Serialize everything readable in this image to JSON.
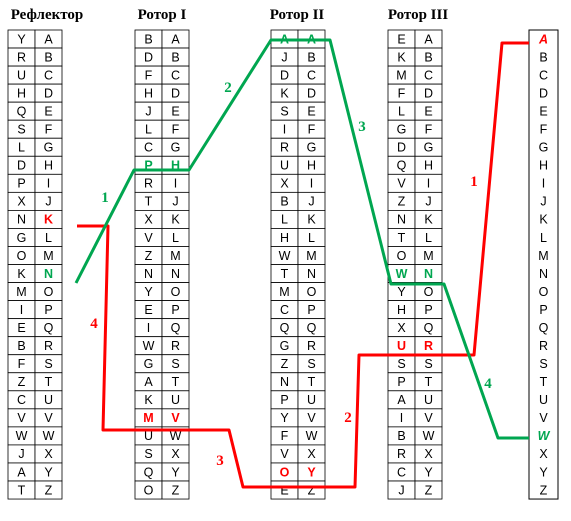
{
  "colors": {
    "red": "#ff0000",
    "green": "#00a650",
    "ink": "#000000",
    "paper": "#ffffff"
  },
  "titles": {
    "reflector": "Рефлектор",
    "rotor1": "Ротор I",
    "rotor2": "Ротор II",
    "rotor3": "Ротор III"
  },
  "reflector": {
    "left": [
      "Y",
      "R",
      "U",
      "H",
      "Q",
      "S",
      "L",
      "D",
      "P",
      "X",
      "N",
      "G",
      "O",
      "K",
      "M",
      "I",
      "E",
      "B",
      "F",
      "Z",
      "C",
      "V",
      "W",
      "J",
      "A",
      "T"
    ],
    "right": [
      "A",
      "B",
      "C",
      "D",
      "E",
      "F",
      "G",
      "H",
      "I",
      "J",
      "K",
      "L",
      "M",
      "N",
      "O",
      "P",
      "Q",
      "R",
      "S",
      "T",
      "U",
      "V",
      "W",
      "X",
      "Y",
      "Z"
    ]
  },
  "rotor1": {
    "left": [
      "B",
      "D",
      "F",
      "H",
      "J",
      "L",
      "C",
      "P",
      "R",
      "T",
      "X",
      "V",
      "Z",
      "N",
      "Y",
      "E",
      "I",
      "W",
      "G",
      "A",
      "K",
      "M",
      "U",
      "S",
      "Q",
      "O"
    ],
    "right": [
      "A",
      "B",
      "C",
      "D",
      "E",
      "F",
      "G",
      "H",
      "I",
      "J",
      "K",
      "L",
      "M",
      "N",
      "O",
      "P",
      "Q",
      "R",
      "S",
      "T",
      "U",
      "V",
      "W",
      "X",
      "Y",
      "Z"
    ]
  },
  "rotor2": {
    "left": [
      "A",
      "J",
      "D",
      "K",
      "S",
      "I",
      "R",
      "U",
      "X",
      "B",
      "L",
      "H",
      "W",
      "T",
      "M",
      "C",
      "Q",
      "G",
      "Z",
      "N",
      "P",
      "Y",
      "F",
      "V",
      "O",
      "E"
    ],
    "right": [
      "A",
      "B",
      "C",
      "D",
      "E",
      "F",
      "G",
      "H",
      "I",
      "J",
      "K",
      "L",
      "M",
      "N",
      "O",
      "P",
      "Q",
      "R",
      "S",
      "T",
      "U",
      "V",
      "W",
      "X",
      "Y",
      "Z"
    ]
  },
  "rotor3": {
    "left": [
      "E",
      "K",
      "M",
      "F",
      "L",
      "G",
      "D",
      "Q",
      "V",
      "Z",
      "N",
      "T",
      "O",
      "W",
      "Y",
      "H",
      "X",
      "U",
      "S",
      "P",
      "A",
      "I",
      "B",
      "R",
      "C",
      "J"
    ],
    "right": [
      "A",
      "B",
      "C",
      "D",
      "E",
      "F",
      "G",
      "H",
      "I",
      "J",
      "K",
      "L",
      "M",
      "N",
      "O",
      "P",
      "Q",
      "R",
      "S",
      "T",
      "U",
      "V",
      "W",
      "X",
      "Y",
      "Z"
    ]
  },
  "input": [
    "A",
    "B",
    "C",
    "D",
    "E",
    "F",
    "G",
    "H",
    "I",
    "J",
    "K",
    "L",
    "M",
    "N",
    "O",
    "P",
    "Q",
    "R",
    "S",
    "T",
    "U",
    "V",
    "W",
    "X",
    "Y",
    "Z"
  ],
  "highlights": [
    {
      "col": "refl",
      "side": "right",
      "index": 10,
      "color": "red"
    },
    {
      "col": "refl",
      "side": "right",
      "index": 13,
      "color": "green"
    },
    {
      "col": "r1",
      "side": "left",
      "index": 7,
      "color": "green"
    },
    {
      "col": "r1",
      "side": "right",
      "index": 7,
      "color": "green"
    },
    {
      "col": "r1",
      "side": "left",
      "index": 21,
      "color": "red"
    },
    {
      "col": "r1",
      "side": "right",
      "index": 21,
      "color": "red"
    },
    {
      "col": "r2",
      "side": "left",
      "index": 0,
      "color": "green"
    },
    {
      "col": "r2",
      "side": "right",
      "index": 0,
      "color": "green"
    },
    {
      "col": "r2",
      "side": "left",
      "index": 24,
      "color": "red"
    },
    {
      "col": "r2",
      "side": "right",
      "index": 24,
      "color": "red"
    },
    {
      "col": "r3",
      "side": "left",
      "index": 13,
      "color": "green"
    },
    {
      "col": "r3",
      "side": "right",
      "index": 13,
      "color": "green"
    },
    {
      "col": "r3",
      "side": "left",
      "index": 17,
      "color": "red"
    },
    {
      "col": "r3",
      "side": "right",
      "index": 17,
      "color": "red"
    },
    {
      "col": "inp",
      "side": "single",
      "index": 0,
      "color": "red"
    },
    {
      "col": "inp",
      "side": "single",
      "index": 22,
      "color": "green"
    }
  ],
  "step_labels": [
    {
      "text": "1",
      "color": "red"
    },
    {
      "text": "2",
      "color": "red"
    },
    {
      "text": "3",
      "color": "red"
    },
    {
      "text": "4",
      "color": "red"
    },
    {
      "text": "1",
      "color": "green"
    },
    {
      "text": "2",
      "color": "green"
    },
    {
      "text": "3",
      "color": "green"
    },
    {
      "text": "4",
      "color": "green"
    }
  ]
}
